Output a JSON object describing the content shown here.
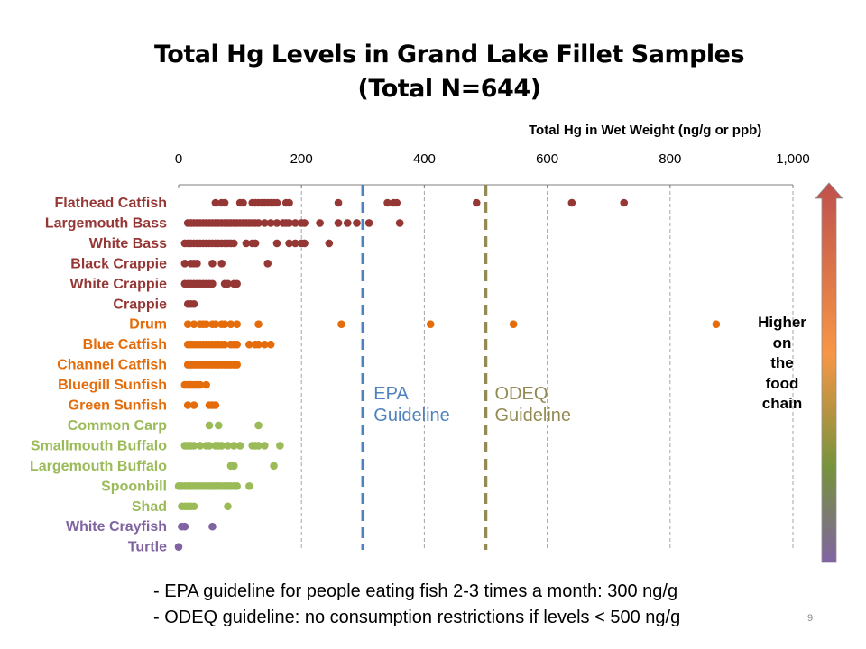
{
  "slide": {
    "title_line1": "Total Hg Levels in Grand Lake Fillet Samples",
    "title_line2": "(Total N=644)",
    "page_number": "9"
  },
  "annotations": {
    "epa_label_line1": "EPA",
    "epa_label_line2": "Guideline",
    "odeq_label_line1": "ODEQ",
    "odeq_label_line2": "Guideline",
    "food_chain_lines": [
      "Higher",
      "on",
      "the",
      "food",
      "chain"
    ]
  },
  "notes": [
    "- EPA guideline for people eating fish 2-3 times a month: 300 ng/g",
    "- ODEQ guideline: no consumption restrictions if levels < 500 ng/g"
  ],
  "colors": {
    "predator": "#953735",
    "mid": "#e46c0a",
    "low": "#9bbb59",
    "invert": "#8064a2",
    "epa_line": "#4f81bd",
    "odeq_line": "#948a54",
    "grid": "#a6a6a6",
    "arrow_top": "#c0504d",
    "arrow_mid": "#f79646",
    "arrow_low": "#77933c",
    "arrow_bottom": "#8064a2"
  },
  "chart_data": {
    "type": "scatter",
    "title": "Total Hg Levels in Grand Lake Fillet Samples (Total N=644)",
    "xlabel": "Total Hg in Wet Weight (ng/g or ppb)",
    "xlim": [
      0,
      1000
    ],
    "xticks": [
      "0",
      "200",
      "400",
      "600",
      "800",
      "1,000"
    ],
    "grid": "vertical dashed",
    "reference_lines": [
      {
        "name": "EPA Guideline",
        "value": 300
      },
      {
        "name": "ODEQ Guideline",
        "value": 500
      }
    ],
    "series": [
      {
        "name": "Flathead Catfish",
        "group": "predator",
        "values": [
          60,
          70,
          75,
          100,
          105,
          120,
          125,
          130,
          135,
          140,
          145,
          150,
          155,
          160,
          175,
          180,
          260,
          340,
          350,
          355,
          485,
          640,
          725
        ]
      },
      {
        "name": "Largemouth Bass",
        "group": "predator",
        "values": [
          15,
          20,
          25,
          30,
          35,
          40,
          45,
          50,
          55,
          60,
          65,
          70,
          75,
          80,
          85,
          90,
          95,
          100,
          105,
          110,
          115,
          120,
          125,
          130,
          140,
          150,
          160,
          170,
          175,
          180,
          190,
          200,
          205,
          230,
          260,
          275,
          290,
          310,
          360
        ]
      },
      {
        "name": "White Bass",
        "group": "predator",
        "values": [
          10,
          15,
          20,
          25,
          30,
          35,
          40,
          45,
          50,
          55,
          60,
          65,
          70,
          75,
          80,
          85,
          90,
          110,
          120,
          125,
          160,
          180,
          190,
          200,
          205,
          245
        ]
      },
      {
        "name": "Black Crappie",
        "group": "predator",
        "values": [
          10,
          20,
          25,
          30,
          55,
          70,
          145
        ]
      },
      {
        "name": "White Crappie",
        "group": "predator",
        "values": [
          10,
          15,
          20,
          25,
          30,
          35,
          40,
          45,
          50,
          55,
          75,
          80,
          90,
          95
        ]
      },
      {
        "name": "Crappie",
        "group": "predator",
        "values": [
          15,
          20,
          25
        ]
      },
      {
        "name": "Drum",
        "group": "mid",
        "values": [
          15,
          25,
          35,
          40,
          45,
          55,
          60,
          70,
          75,
          85,
          95,
          130,
          265,
          410,
          545,
          875
        ]
      },
      {
        "name": "Blue Catfish",
        "group": "mid",
        "values": [
          15,
          20,
          25,
          30,
          35,
          40,
          45,
          50,
          55,
          60,
          65,
          70,
          75,
          85,
          90,
          95,
          115,
          125,
          130,
          140,
          150
        ]
      },
      {
        "name": "Channel Catfish",
        "group": "mid",
        "values": [
          15,
          20,
          25,
          30,
          35,
          40,
          45,
          50,
          55,
          60,
          65,
          70,
          75,
          80,
          85,
          90,
          95
        ]
      },
      {
        "name": "Bluegill Sunfish",
        "group": "mid",
        "values": [
          10,
          15,
          20,
          25,
          30,
          35,
          45
        ]
      },
      {
        "name": "Green Sunfish",
        "group": "mid",
        "values": [
          15,
          25,
          50,
          55,
          60
        ]
      },
      {
        "name": "Common Carp",
        "group": "low",
        "values": [
          50,
          65,
          130
        ]
      },
      {
        "name": "Smallmouth Buffalo",
        "group": "low",
        "values": [
          10,
          15,
          20,
          25,
          35,
          45,
          50,
          60,
          65,
          70,
          80,
          90,
          100,
          120,
          125,
          130,
          140,
          165
        ]
      },
      {
        "name": "Largemouth Buffalo",
        "group": "low",
        "values": [
          85,
          90,
          155
        ]
      },
      {
        "name": "Spoonbill",
        "group": "low",
        "values": [
          0,
          5,
          10,
          15,
          20,
          25,
          30,
          35,
          40,
          45,
          50,
          55,
          60,
          65,
          70,
          75,
          80,
          85,
          90,
          95,
          115
        ]
      },
      {
        "name": "Shad",
        "group": "low",
        "values": [
          5,
          10,
          15,
          20,
          25,
          80
        ]
      },
      {
        "name": "White Crayfish",
        "group": "invert",
        "values": [
          5,
          10,
          55
        ]
      },
      {
        "name": "Turtle",
        "group": "invert",
        "values": [
          0
        ]
      }
    ]
  }
}
